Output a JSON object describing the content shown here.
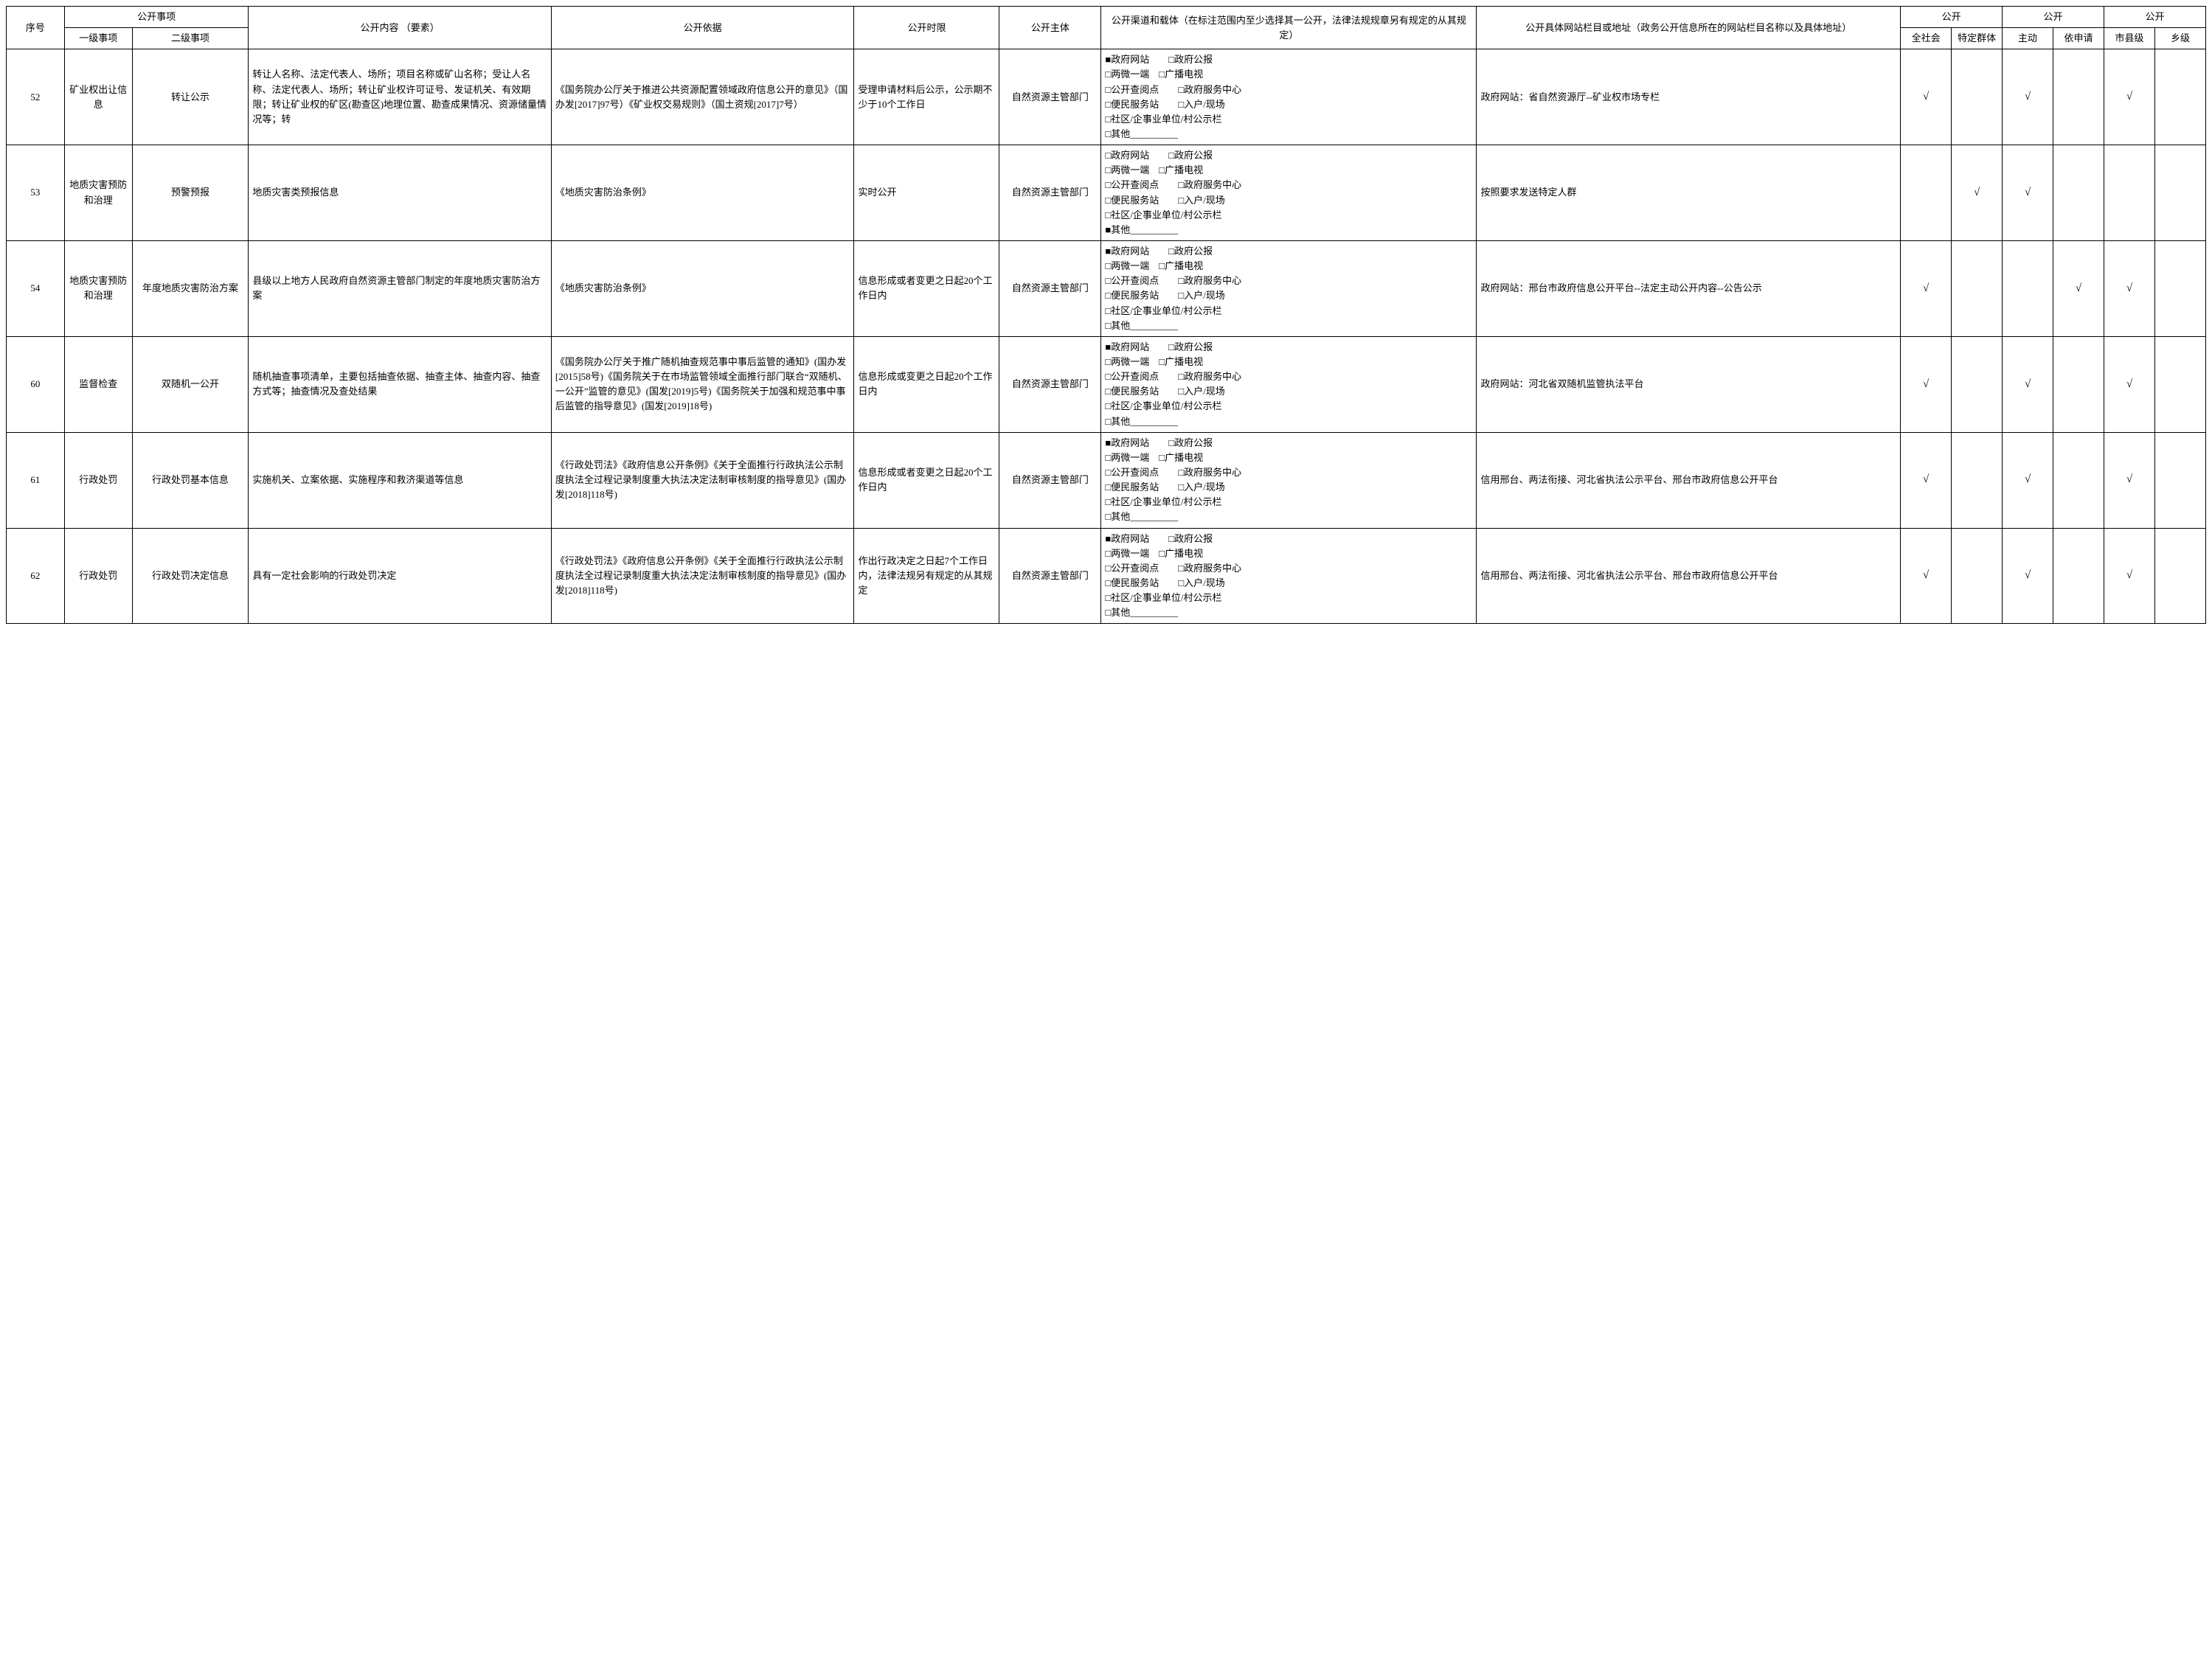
{
  "headers": {
    "seq": "序号",
    "matters": "公开事项",
    "lvl1": "一级事项",
    "lvl2": "二级事项",
    "content": "公开内容\n（要素）",
    "basis": "公开依据",
    "time": "公开时限",
    "subject": "公开主体",
    "channel": "公开渠道和载体（在标注范围内至少选择其一公开，法律法规规章另有规定的从其规定）",
    "site": "公开具体网站栏目或地址（政务公开信息所在的网站栏目名称以及具体地址）",
    "group_gk": "公开",
    "ck1": "全社会",
    "ck2": "特定群体",
    "ck3": "主动",
    "ck4": "依申请",
    "ck5": "市县级",
    "ck6": "乡级"
  },
  "channel_template": {
    "filled": "■",
    "empty": "□",
    "items": [
      "政府网站　　□政府公报",
      "两微一端　□广播电视",
      "公开查阅点　　□政府服务中心",
      "便民服务站　　□入户/现场",
      "社区/企事业单位/村公示栏",
      "其他__________"
    ]
  },
  "rows": [
    {
      "seq": "52",
      "lvl1": "矿业权出让信息",
      "lvl2": "转让公示",
      "content": "转让人名称、法定代表人、场所；项目名称或矿山名称；受让人名称、法定代表人、场所；转让矿业权许可证号、发证机关、有效期限；转让矿业权的矿区(勘查区)地理位置、勘查成果情况、资源储量情况等；转",
      "basis": "《国务院办公厅关于推进公共资源配置领域政府信息公开的意见》（国办发[2017]97号）《矿业权交易规则》（国土资规[2017]7号）",
      "time": "受理申请材料后公示，公示期不少于10个工作日",
      "subject": "自然资源主管部门",
      "channel_mask": [
        1,
        0,
        0,
        0,
        0,
        0
      ],
      "site": "政府网站：省自然资源厅--矿业权市场专栏",
      "checks": [
        "√",
        "",
        "√",
        "",
        "√",
        ""
      ]
    },
    {
      "seq": "53",
      "lvl1": "地质灾害预防和治理",
      "lvl2": "预警预报",
      "content": "地质灾害类预报信息",
      "basis": "《地质灾害防治条例》",
      "time": "实时公开",
      "subject": "自然资源主管部门",
      "channel_mask": [
        0,
        0,
        0,
        0,
        0,
        1
      ],
      "site": "按照要求发送特定人群",
      "checks": [
        "",
        "√",
        "√",
        "",
        "",
        ""
      ]
    },
    {
      "seq": "54",
      "lvl1": "地质灾害预防和治理",
      "lvl2": "年度地质灾害防治方案",
      "content": "县级以上地方人民政府自然资源主管部门制定的年度地质灾害防治方案",
      "basis": "《地质灾害防治条例》",
      "time": "信息形成或者变更之日起20个工作日内",
      "subject": "自然资源主管部门",
      "channel_mask": [
        1,
        0,
        0,
        0,
        0,
        0
      ],
      "site": "政府网站：邢台市政府信息公开平台--法定主动公开内容--公告公示",
      "checks": [
        "√",
        "",
        "",
        "√",
        "√",
        ""
      ]
    },
    {
      "seq": "60",
      "lvl1": "监督检查",
      "lvl2": "双随机一公开",
      "content": "随机抽查事项清单，主要包括抽查依据、抽查主体、抽查内容、抽查方式等；抽查情况及查处结果",
      "basis": "《国务院办公厅关于推广随机抽查规范事中事后监管的通知》(国办发[2015]58号)《国务院关于在市场监管领域全面推行部门联合“双随机、一公开”监管的意见》(国发[2019]5号)《国务院关于加强和规范事中事后监管的指导意见》(国发[2019]18号)",
      "time": "信息形成或变更之日起20个工作日内",
      "subject": "自然资源主管部门",
      "channel_mask": [
        1,
        0,
        0,
        0,
        0,
        0
      ],
      "site": "政府网站：河北省双随机监管执法平台",
      "checks": [
        "√",
        "",
        "√",
        "",
        "√",
        ""
      ]
    },
    {
      "seq": "61",
      "lvl1": "行政处罚",
      "lvl2": "行政处罚基本信息",
      "content": "实施机关、立案依据、实施程序和救济渠道等信息",
      "basis": "《行政处罚法》《政府信息公开条例》《关于全面推行行政执法公示制度执法全过程记录制度重大执法决定法制审核制度的指导意见》(国办发[2018]118号)",
      "time": "信息形成或者变更之日起20个工作日内",
      "subject": "自然资源主管部门",
      "channel_mask": [
        1,
        0,
        0,
        0,
        0,
        0
      ],
      "site": "信用邢台、两法衔接、河北省执法公示平台、邢台市政府信息公开平台",
      "checks": [
        "√",
        "",
        "√",
        "",
        "√",
        ""
      ]
    },
    {
      "seq": "62",
      "lvl1": "行政处罚",
      "lvl2": "行政处罚决定信息",
      "content": "具有一定社会影响的行政处罚决定",
      "basis": "《行政处罚法》《政府信息公开条例》《关于全面推行行政执法公示制度执法全过程记录制度重大执法决定法制审核制度的指导意见》(国办发[2018]118号)",
      "time": "作出行政决定之日起7个工作日内，法律法规另有规定的从其规定",
      "subject": "自然资源主管部门",
      "channel_mask": [
        1,
        0,
        0,
        0,
        0,
        0
      ],
      "site": "信用邢台、两法衔接、河北省执法公示平台、邢台市政府信息公开平台",
      "checks": [
        "√",
        "",
        "√",
        "",
        "√",
        ""
      ]
    }
  ]
}
